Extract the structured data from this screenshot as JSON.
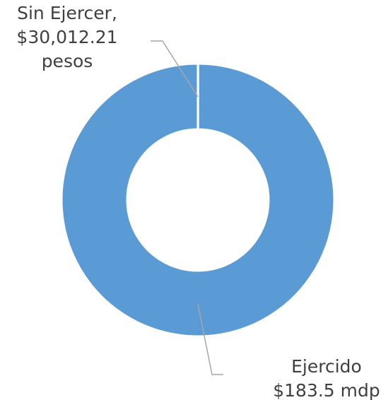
{
  "chart_data": {
    "type": "pie",
    "categories": [
      "Sin Ejercer,",
      "Ejercido"
    ],
    "values": [
      30012.21,
      183500000
    ],
    "value_labels": [
      "$30,012.21 pesos",
      "$183.5 mdp"
    ],
    "colors": [
      "#5b9bd5",
      "#5b9bd5"
    ]
  }
}
